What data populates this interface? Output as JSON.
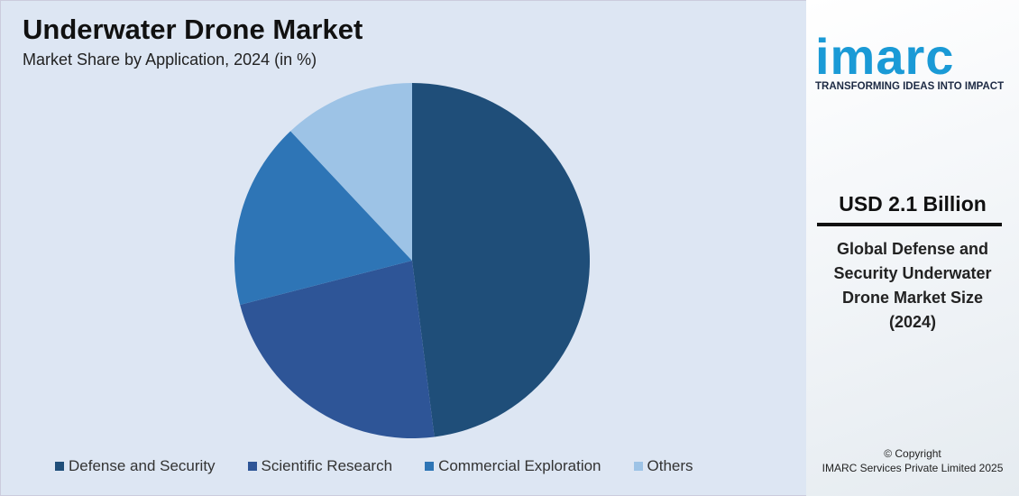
{
  "chart_data": {
    "type": "pie",
    "title": "Underwater Drone Market",
    "subtitle": "Market Share by Application, 2024 (in %)",
    "categories": [
      "Defense and Security",
      "Scientific Research",
      "Commercial Exploration",
      "Others"
    ],
    "values": [
      48,
      23,
      17,
      12
    ],
    "colors": [
      "#1f4e79",
      "#2e5597",
      "#2e75b6",
      "#9dc3e6"
    ],
    "legend_position": "bottom",
    "start_angle": "top, clockwise"
  },
  "sidebar": {
    "logo": "imarc",
    "tagline": "TRANSFORMING IDEAS INTO IMPACT",
    "value": "USD 2.1 Billion",
    "description_lines": [
      "Global Defense and",
      "Security Underwater",
      "Drone Market Size",
      "(2024)"
    ],
    "copyright_line1": "© Copyright",
    "copyright_line2": "IMARC Services Private Limited 2025"
  }
}
